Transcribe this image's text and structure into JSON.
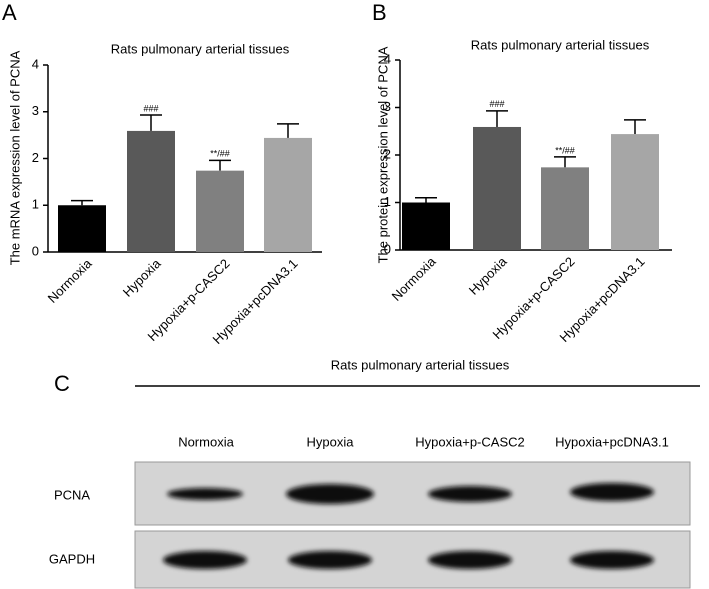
{
  "chart_data": [
    {
      "type": "bar",
      "panel": "A",
      "title": "Rats pulmonary arterial tissues",
      "y_label": "The mRNA expression level of PCNA",
      "categories": [
        "Normoxia",
        "Hypoxia",
        "Hypoxia+p-CASC2",
        "Hypoxia+pcDNA3.1"
      ],
      "values": [
        1.0,
        2.59,
        1.74,
        2.44
      ],
      "errors": [
        0.1,
        0.34,
        0.22,
        0.3
      ],
      "annotations": [
        null,
        "###",
        "**/##",
        null
      ],
      "colors": [
        "#000000",
        "#595959",
        "#808080",
        "#a6a6a6"
      ],
      "ylim": [
        0,
        4
      ],
      "yticks": [
        0,
        1,
        2,
        3,
        4
      ]
    },
    {
      "type": "bar",
      "panel": "B",
      "title": "Rats pulmonary arterial tissues",
      "y_label": "The protein expression level of PCNA",
      "categories": [
        "Normoxia",
        "Hypoxia",
        "Hypoxia+p-CASC2",
        "Hypoxia+pcDNA3.1"
      ],
      "values": [
        1.0,
        2.59,
        1.74,
        2.44
      ],
      "errors": [
        0.1,
        0.34,
        0.22,
        0.3
      ],
      "annotations": [
        null,
        "###",
        "**/##",
        null
      ],
      "colors": [
        "#000000",
        "#595959",
        "#808080",
        "#a6a6a6"
      ],
      "ylim": [
        0,
        4
      ],
      "yticks": [
        0,
        1,
        2,
        3,
        4
      ]
    }
  ],
  "blot": {
    "panel": "C",
    "title": "Rats pulmonary arterial tissues",
    "columns": [
      "Normoxia",
      "Hypoxia",
      "Hypoxia+p-CASC2",
      "Hypoxia+pcDNA3.1"
    ],
    "rows": [
      "PCNA",
      "GAPDH"
    ]
  }
}
